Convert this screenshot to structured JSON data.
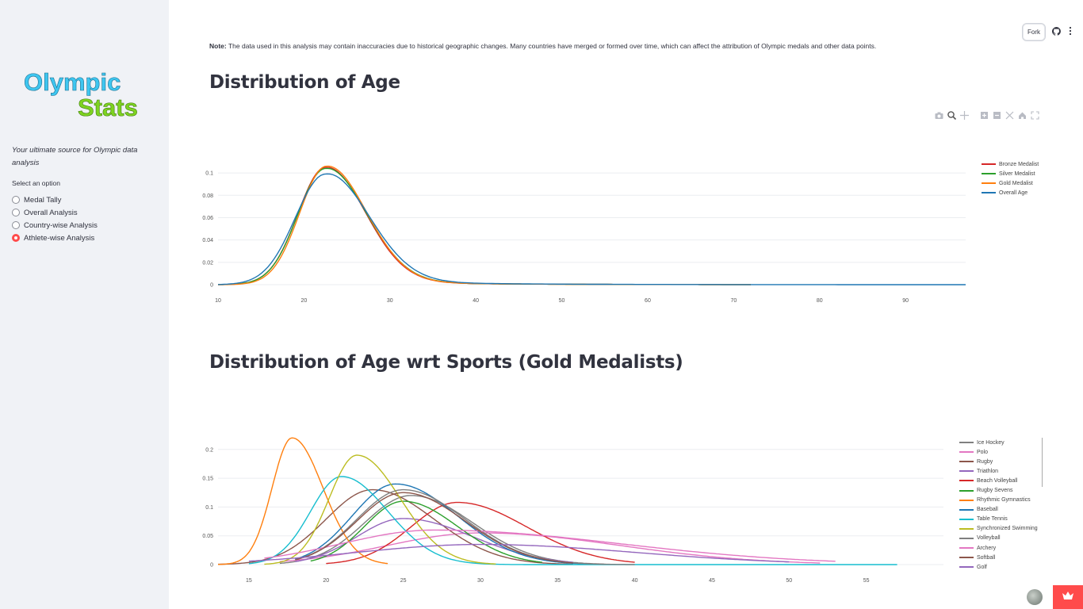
{
  "sidebar": {
    "logo": {
      "line1": "Olympic",
      "line2": "Stats"
    },
    "tagline": "Your ultimate source for Olympic data analysis",
    "select_label": "Select an option",
    "options": [
      {
        "label": "Medal Tally",
        "selected": false
      },
      {
        "label": "Overall Analysis",
        "selected": false
      },
      {
        "label": "Country-wise Analysis",
        "selected": false
      },
      {
        "label": "Athlete-wise Analysis",
        "selected": true
      }
    ]
  },
  "header": {
    "fork_label": "Fork",
    "github_icon": "github-icon",
    "menu_icon": "kebab-menu-icon"
  },
  "main": {
    "note_label": "Note:",
    "note_text": "The data used in this analysis may contain inaccuracies due to historical geographic changes. Many countries have merged or formed over time, which can affect the attribution of Olympic medals and other data points.",
    "section1_title": "Distribution of Age",
    "section2_title": "Distribution of Age wrt Sports (Gold Medalists)"
  },
  "modebar": [
    "camera-icon",
    "zoom-icon",
    "pan-icon",
    "zoom-in-icon",
    "zoom-out-icon",
    "autoscale-icon",
    "reset-axes-icon",
    "fullscreen-icon"
  ],
  "colors": {
    "accent": "#ff4b4b",
    "sidebar_bg": "#f0f2f6",
    "logo_blue": "#3ec6f0",
    "logo_green": "#7ed321"
  },
  "chart_data": [
    {
      "type": "line",
      "title": "Distribution of Age",
      "xlim": [
        10,
        97
      ],
      "ylim": [
        0,
        0.11
      ],
      "x_ticks": [
        10,
        20,
        30,
        40,
        50,
        60,
        70,
        80,
        90
      ],
      "y_ticks": [
        0,
        0.02,
        0.04,
        0.06,
        0.08,
        0.1
      ],
      "y_tick_labels": [
        "0",
        "0.02",
        "0.04",
        "0.06",
        "0.08",
        "0.1"
      ],
      "legend_position": "right",
      "series": [
        {
          "name": "Bronze Medalist",
          "color": "#d62728",
          "peak_x": 22.5,
          "peak_y": 0.105,
          "sl": 3.2,
          "sr": 4.6,
          "tail": 0.004,
          "tail_decay": 12,
          "x_end": 72
        },
        {
          "name": "Silver Medalist",
          "color": "#2ca02c",
          "peak_x": 22.5,
          "peak_y": 0.104,
          "sl": 3.2,
          "sr": 4.7,
          "tail": 0.004,
          "tail_decay": 12,
          "x_end": 72
        },
        {
          "name": "Gold Medalist",
          "color": "#ff7f0e",
          "peak_x": 22.6,
          "peak_y": 0.106,
          "sl": 3.1,
          "sr": 4.6,
          "tail": 0.004,
          "tail_decay": 12,
          "x_end": 72
        },
        {
          "name": "Overall Age",
          "color": "#1f77b4",
          "peak_x": 22.5,
          "peak_y": 0.099,
          "sl": 3.5,
          "sr": 5.0,
          "tail": 0.005,
          "tail_decay": 12,
          "x_end": 97
        }
      ]
    },
    {
      "type": "line",
      "title": "Distribution of Age wrt Sports (Gold Medalists)",
      "xlim": [
        13,
        60
      ],
      "ylim": [
        0,
        0.23
      ],
      "x_ticks": [
        15,
        20,
        25,
        30,
        35,
        40,
        45,
        50,
        55
      ],
      "y_ticks": [
        0,
        0.05,
        0.1,
        0.15,
        0.2
      ],
      "y_tick_labels": [
        "0",
        "0.05",
        "0.1",
        "0.15",
        "0.2"
      ],
      "legend_position": "right",
      "series": [
        {
          "name": "Ice Hockey",
          "color": "#7f7f7f",
          "peak_x": 25.5,
          "peak_y": 0.12,
          "sl": 3.0,
          "sr": 4.0,
          "x_start": 17,
          "x_end": 38
        },
        {
          "name": "Polo",
          "color": "#e377c2",
          "peak_x": 30,
          "peak_y": 0.055,
          "sl": 6.0,
          "sr": 9.0,
          "x_start": 17,
          "x_end": 52
        },
        {
          "name": "Rugby",
          "color": "#8c564b",
          "peak_x": 23,
          "peak_y": 0.13,
          "sl": 3.0,
          "sr": 4.0,
          "x_start": 13,
          "x_end": 36
        },
        {
          "name": "Triathlon",
          "color": "#9467bd",
          "peak_x": 25,
          "peak_y": 0.08,
          "sl": 3.0,
          "sr": 4.5,
          "x_start": 18,
          "x_end": 36
        },
        {
          "name": "Beach Volleyball",
          "color": "#d62728",
          "peak_x": 28.5,
          "peak_y": 0.108,
          "sl": 3.0,
          "sr": 4.5,
          "x_start": 20,
          "x_end": 40
        },
        {
          "name": "Rugby Sevens",
          "color": "#2ca02c",
          "peak_x": 25,
          "peak_y": 0.11,
          "sl": 2.5,
          "sr": 3.5,
          "x_start": 19,
          "x_end": 34
        },
        {
          "name": "Rhythmic Gymnastics",
          "color": "#ff7f0e",
          "peak_x": 17.8,
          "peak_y": 0.22,
          "sl": 1.3,
          "sr": 2.0,
          "x_start": 13,
          "x_end": 24
        },
        {
          "name": "Baseball",
          "color": "#1f77b4",
          "peak_x": 24.5,
          "peak_y": 0.14,
          "sl": 2.8,
          "sr": 4.0,
          "x_start": 18,
          "x_end": 37
        },
        {
          "name": "Table Tennis",
          "color": "#17becf",
          "peak_x": 21,
          "peak_y": 0.153,
          "sl": 2.0,
          "sr": 3.0,
          "x_start": 15,
          "x_end": 57
        },
        {
          "name": "Synchronized Swimming",
          "color": "#bcbd22",
          "peak_x": 22,
          "peak_y": 0.19,
          "sl": 1.8,
          "sr": 2.8,
          "x_start": 16,
          "x_end": 31
        },
        {
          "name": "Volleyball",
          "color": "#7f7f7f",
          "peak_x": 25,
          "peak_y": 0.13,
          "sl": 3.0,
          "sr": 4.0,
          "x_start": 18,
          "x_end": 40
        },
        {
          "name": "Archery",
          "color": "#e377c2",
          "peak_x": 27,
          "peak_y": 0.06,
          "sl": 6.0,
          "sr": 12.0,
          "x_start": 16,
          "x_end": 53
        },
        {
          "name": "Softball",
          "color": "#8c564b",
          "peak_x": 25,
          "peak_y": 0.125,
          "sl": 3.0,
          "sr": 4.0,
          "x_start": 18,
          "x_end": 36
        },
        {
          "name": "Golf",
          "color": "#9467bd",
          "peak_x": 30,
          "peak_y": 0.035,
          "sl": 8.0,
          "sr": 10.0,
          "x_start": 15,
          "x_end": 50
        }
      ]
    }
  ]
}
